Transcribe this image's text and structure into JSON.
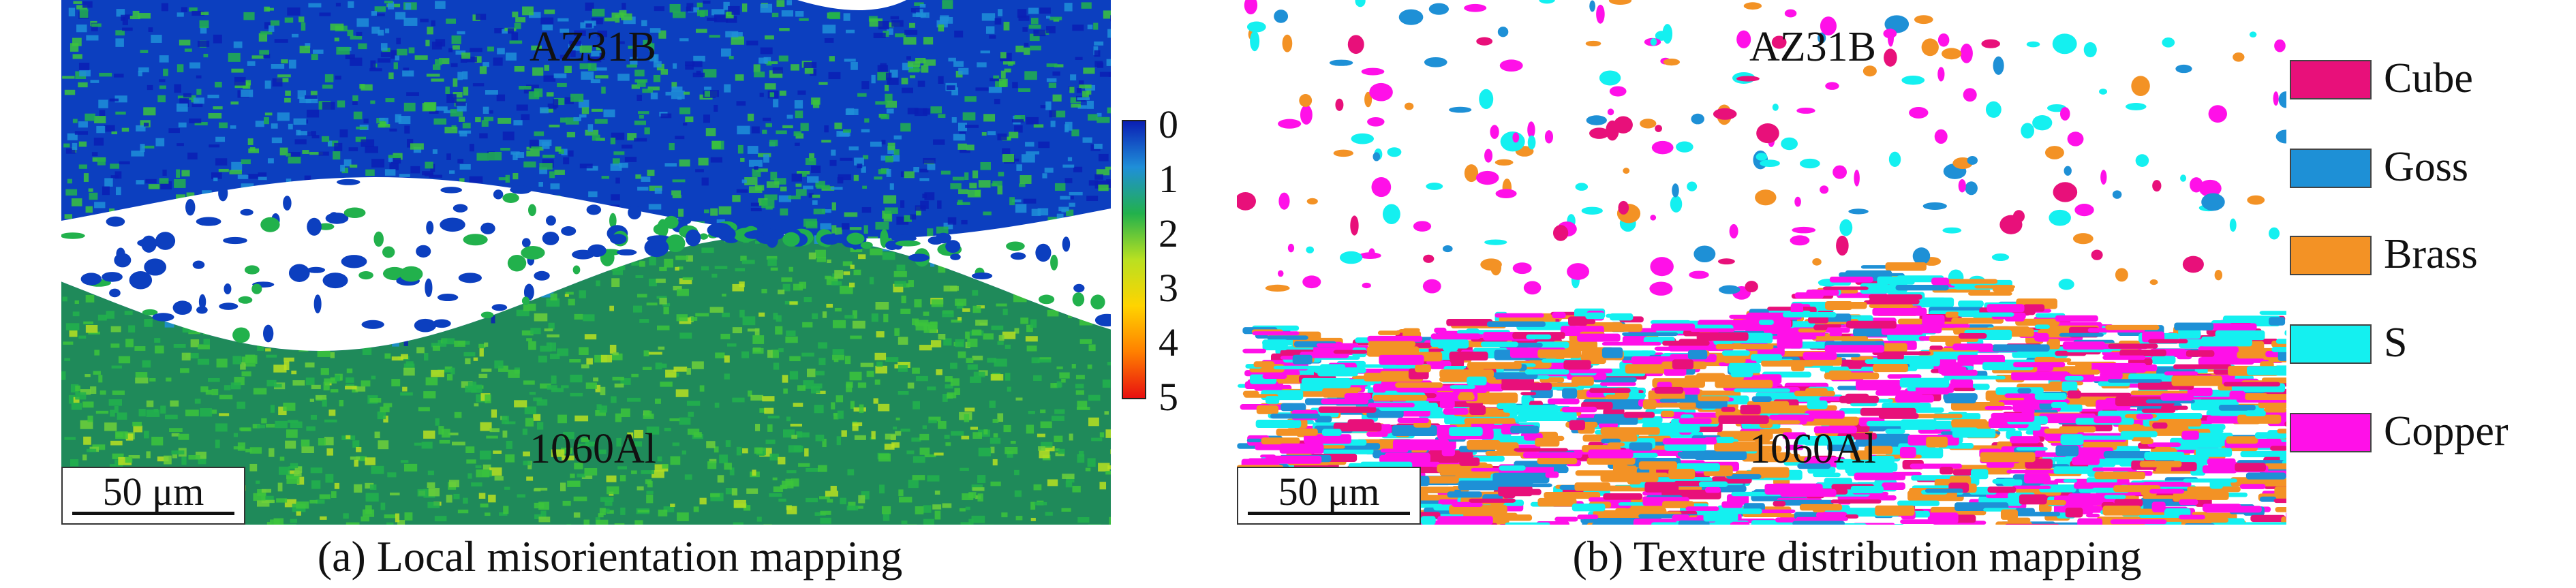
{
  "panel_a": {
    "top_label": "AZ31B",
    "bottom_label": "1060Al",
    "scale_bar": "50 μm",
    "caption": "(a) Local misorientation mapping",
    "colorbar": {
      "ticks": [
        "0",
        "1",
        "2",
        "3",
        "4",
        "5"
      ],
      "colors": [
        "#0a1fb4",
        "#1f8fd8",
        "#22b14c",
        "#b9e021",
        "#ffd400",
        "#ff8000",
        "#e81010"
      ]
    }
  },
  "panel_b": {
    "top_label": "AZ31B",
    "bottom_label": "1060Al",
    "scale_bar": "50 μm",
    "caption": "(b) Texture distribution mapping",
    "legend": [
      {
        "label": "Cube",
        "color": "#e8107a"
      },
      {
        "label": "Goss",
        "color": "#1e90d6"
      },
      {
        "label": "Brass",
        "color": "#f39225"
      },
      {
        "label": "S",
        "color": "#14f0f0"
      },
      {
        "label": "Copper",
        "color": "#ff10e8"
      }
    ]
  }
}
